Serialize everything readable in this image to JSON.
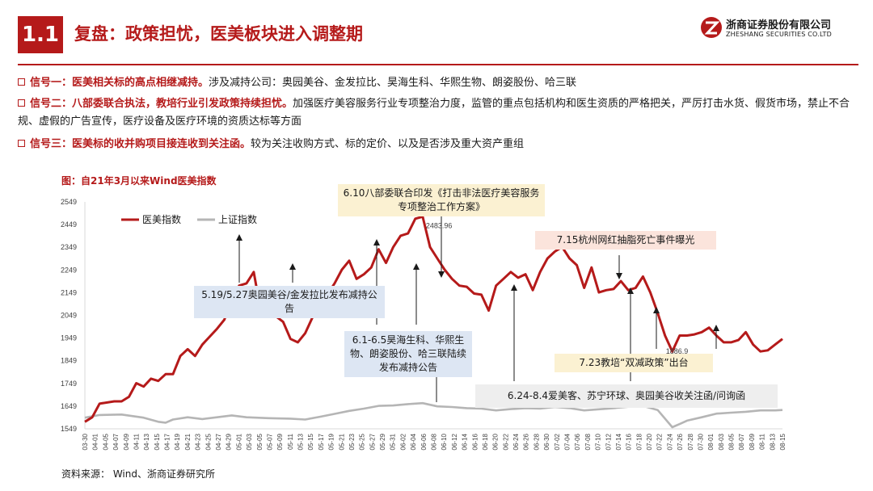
{
  "header": {
    "section_number": "1.1",
    "title": "复盘：政策担忧，医美板块进入调整期",
    "logo_cn": "浙商证券股份有限公司",
    "logo_en": "ZHESHANG SECURITIES CO.LTD"
  },
  "signals": [
    {
      "label": "信号一：医美相关标的高点相继减持。",
      "text": "涉及减持公司：奥园美谷、金发拉比、昊海生科、华熙生物、朗姿股份、哈三联"
    },
    {
      "label": "信号二：八部委联合执法，教培行业引发政策持续担忧。",
      "text": "加强医疗美容服务行业专项整治力度，监管的重点包括机构和医生资质的严格把关，严厉打击水货、假货市场，禁止不合规、虚假的广告宣传，医疗设备及医疗环境的资质达标等方面"
    },
    {
      "label": "信号三：医美标的收并购项目接连收到关注函。",
      "text": "较为关注收购方式、标的定价、以及是否涉及重大资产重组"
    }
  ],
  "chart_data": {
    "type": "line",
    "title": "图：自21年3月以来Wind医美指数",
    "ylim": [
      1549,
      2549
    ],
    "yticks": [
      1549,
      1649,
      1749,
      1849,
      1949,
      2049,
      2149,
      2249,
      2349,
      2449,
      2549
    ],
    "categories": [
      "03-30",
      "04-01",
      "04-05",
      "04-07",
      "04-09",
      "04-11",
      "04-13",
      "04-15",
      "04-17",
      "04-19",
      "04-21",
      "04-23",
      "04-25",
      "04-27",
      "04-29",
      "05-01",
      "05-03",
      "05-05",
      "05-07",
      "05-09",
      "05-11",
      "05-13",
      "05-15",
      "05-17",
      "05-19",
      "05-21",
      "05-23",
      "05-25",
      "05-27",
      "05-29",
      "05-31",
      "06-02",
      "06-04",
      "06-06",
      "06-08",
      "06-10",
      "06-12",
      "06-14",
      "06-16",
      "06-18",
      "06-20",
      "06-22",
      "06-24",
      "06-26",
      "06-28",
      "06-30",
      "07-02",
      "07-04",
      "07-06",
      "07-08",
      "07-10",
      "07-12",
      "07-14",
      "07-16",
      "07-18",
      "07-20",
      "07-22",
      "07-24",
      "07-26",
      "07-28",
      "07-30",
      "08-01",
      "08-03",
      "08-05",
      "08-07",
      "08-09",
      "08-11",
      "08-13",
      "08-15"
    ],
    "series": [
      {
        "name": "医美指数",
        "color": "#b51a1a",
        "points": [
          [
            0,
            1580
          ],
          [
            1,
            1600
          ],
          [
            2,
            1660
          ],
          [
            4,
            1670
          ],
          [
            5,
            1670
          ],
          [
            6,
            1690
          ],
          [
            7,
            1750
          ],
          [
            8,
            1735
          ],
          [
            9,
            1770
          ],
          [
            10,
            1760
          ],
          [
            11,
            1790
          ],
          [
            12,
            1790
          ],
          [
            13,
            1870
          ],
          [
            14,
            1900
          ],
          [
            15,
            1870
          ],
          [
            16,
            1920
          ],
          [
            17,
            1955
          ],
          [
            18,
            1990
          ],
          [
            19,
            2030
          ],
          [
            20,
            2120
          ],
          [
            21,
            2180
          ],
          [
            22,
            2190
          ],
          [
            23,
            2240
          ],
          [
            24,
            2060
          ],
          [
            25,
            2050
          ],
          [
            26,
            2045
          ],
          [
            27,
            2020
          ],
          [
            28,
            1945
          ],
          [
            29,
            1930
          ],
          [
            30,
            1970
          ],
          [
            31,
            2040
          ],
          [
            32,
            2090
          ],
          [
            33,
            2140
          ],
          [
            34,
            2190
          ],
          [
            35,
            2250
          ],
          [
            36,
            2290
          ],
          [
            37,
            2210
          ],
          [
            38,
            2230
          ],
          [
            39,
            2260
          ],
          [
            40,
            2340
          ],
          [
            41,
            2280
          ],
          [
            42,
            2350
          ],
          [
            43,
            2400
          ],
          [
            44,
            2410
          ],
          [
            45,
            2475
          ],
          [
            46,
            2484
          ],
          [
            47,
            2350
          ],
          [
            48,
            2300
          ],
          [
            49,
            2250
          ],
          [
            50,
            2210
          ],
          [
            51,
            2180
          ],
          [
            52,
            2175
          ],
          [
            53,
            2145
          ],
          [
            54,
            2140
          ],
          [
            55,
            2070
          ],
          [
            56,
            2180
          ],
          [
            57,
            2210
          ],
          [
            58,
            2240
          ],
          [
            59,
            2215
          ],
          [
            60,
            2230
          ],
          [
            61,
            2160
          ],
          [
            62,
            2240
          ],
          [
            63,
            2300
          ],
          [
            64,
            2330
          ],
          [
            65,
            2350
          ],
          [
            66,
            2300
          ],
          [
            67,
            2270
          ],
          [
            68,
            2170
          ],
          [
            69,
            2260
          ],
          [
            70,
            2150
          ],
          [
            71,
            2160
          ],
          [
            72,
            2165
          ],
          [
            73,
            2200
          ],
          [
            74,
            2160
          ],
          [
            75,
            2170
          ],
          [
            76,
            2220
          ],
          [
            77,
            2150
          ],
          [
            78,
            2060
          ],
          [
            79,
            1960
          ],
          [
            80,
            1890
          ],
          [
            81,
            1960
          ],
          [
            82,
            1960
          ],
          [
            83,
            1965
          ],
          [
            84,
            1975
          ],
          [
            85,
            1995
          ],
          [
            86,
            1960
          ],
          [
            87,
            1930
          ],
          [
            88,
            1930
          ],
          [
            89,
            1940
          ],
          [
            90,
            1975
          ],
          [
            91,
            1920
          ],
          [
            92,
            1890
          ],
          [
            93,
            1895
          ],
          [
            94,
            1920
          ],
          [
            95,
            1945
          ]
        ]
      },
      {
        "name": "上证指数",
        "color": "#b5b5b5",
        "points": [
          [
            0,
            1598
          ],
          [
            2,
            1610
          ],
          [
            5,
            1612
          ],
          [
            8,
            1598
          ],
          [
            10,
            1580
          ],
          [
            11,
            1576
          ],
          [
            12,
            1590
          ],
          [
            14,
            1600
          ],
          [
            16,
            1592
          ],
          [
            18,
            1600
          ],
          [
            20,
            1608
          ],
          [
            22,
            1600
          ],
          [
            25,
            1596
          ],
          [
            28,
            1594
          ],
          [
            30,
            1590
          ],
          [
            32,
            1602
          ],
          [
            34,
            1615
          ],
          [
            36,
            1628
          ],
          [
            38,
            1638
          ],
          [
            40,
            1650
          ],
          [
            42,
            1652
          ],
          [
            44,
            1658
          ],
          [
            46,
            1662
          ],
          [
            48,
            1648
          ],
          [
            50,
            1645
          ],
          [
            52,
            1640
          ],
          [
            54,
            1638
          ],
          [
            56,
            1630
          ],
          [
            58,
            1636
          ],
          [
            60,
            1640
          ],
          [
            62,
            1638
          ],
          [
            64,
            1645
          ],
          [
            66,
            1640
          ],
          [
            68,
            1630
          ],
          [
            70,
            1635
          ],
          [
            72,
            1640
          ],
          [
            74,
            1646
          ],
          [
            76,
            1650
          ],
          [
            78,
            1632
          ],
          [
            80,
            1556
          ],
          [
            81,
            1570
          ],
          [
            82,
            1585
          ],
          [
            84,
            1600
          ],
          [
            86,
            1616
          ],
          [
            88,
            1620
          ],
          [
            90,
            1624
          ],
          [
            92,
            1630
          ],
          [
            94,
            1630
          ],
          [
            95,
            1632
          ]
        ]
      }
    ],
    "x_count": 96,
    "data_labels": [
      {
        "text": "2483.96"
      },
      {
        "text": "1886.9"
      }
    ],
    "annotations": [
      {
        "text": "6.10八部委联合印发《打击非法医疗美容服务专项整治工作方案》"
      },
      {
        "text": "7.15杭州网红抽脂死亡事件曝光"
      },
      {
        "text": "5.19/5.27奥园美谷/金发拉比发布减持公告"
      },
      {
        "text": "6.1-6.5昊海生科、华熙生物、朗姿股份、哈三联陆续发布减持公告"
      },
      {
        "text": "7.23教培“双减政策”出台"
      },
      {
        "text": "6.24-8.4爱美客、苏宁环球、奥园美谷收关注函/问询函"
      }
    ],
    "legend_position": "top-left",
    "grid": false
  },
  "source": "资料来源：   Wind、浙商证券研究所"
}
